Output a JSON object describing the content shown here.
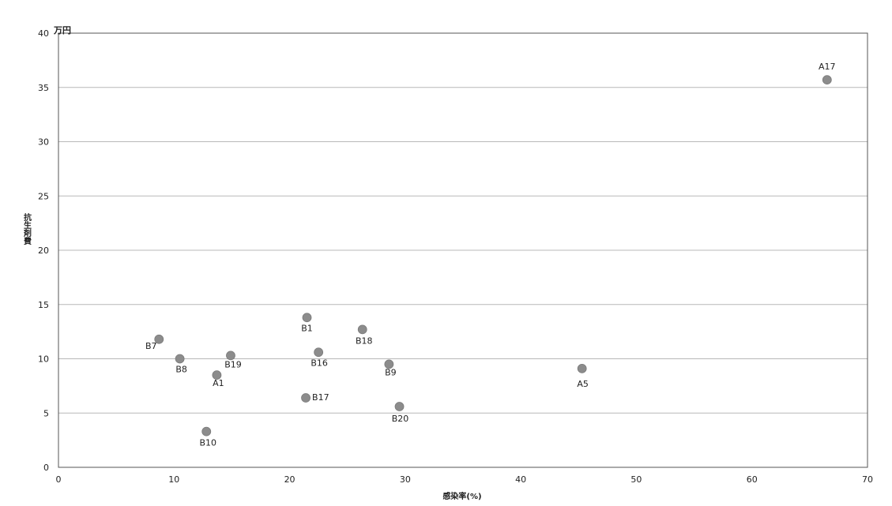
{
  "chart_data": {
    "type": "scatter",
    "title": "",
    "xlabel": "感染率(%)",
    "ylabel": "抗生剤費",
    "y_unit": "万円",
    "xlim": [
      0,
      70
    ],
    "ylim": [
      0,
      40
    ],
    "x_ticks": [
      "0",
      "10",
      "20",
      "30",
      "40",
      "50",
      "60",
      "70"
    ],
    "y_ticks": [
      "0",
      "5",
      "10",
      "15",
      "20",
      "25",
      "30",
      "35",
      "40"
    ],
    "grid": "horizontal",
    "legend": "none",
    "marker_color": "#8c8c8c",
    "points": [
      {
        "label": "A17",
        "x": 66.5,
        "y": 35.7
      },
      {
        "label": "B1",
        "x": 21.5,
        "y": 13.8
      },
      {
        "label": "B18",
        "x": 26.3,
        "y": 12.7
      },
      {
        "label": "B7",
        "x": 8.7,
        "y": 11.8
      },
      {
        "label": "B19",
        "x": 14.9,
        "y": 10.3
      },
      {
        "label": "B16",
        "x": 22.5,
        "y": 10.6
      },
      {
        "label": "B8",
        "x": 10.5,
        "y": 10.0
      },
      {
        "label": "B9",
        "x": 28.6,
        "y": 9.5
      },
      {
        "label": "A5",
        "x": 45.3,
        "y": 9.1
      },
      {
        "label": "A1",
        "x": 13.7,
        "y": 8.5
      },
      {
        "label": "B17",
        "x": 21.4,
        "y": 6.4
      },
      {
        "label": "B20",
        "x": 29.5,
        "y": 5.6
      },
      {
        "label": "B10",
        "x": 12.8,
        "y": 3.3
      }
    ]
  }
}
